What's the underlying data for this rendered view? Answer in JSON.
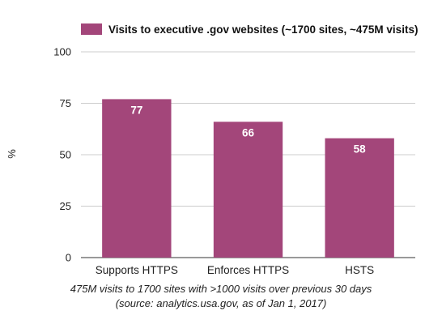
{
  "chart_data": {
    "type": "bar",
    "categories": [
      "Supports HTTPS",
      "Enforces HTTPS",
      "HSTS"
    ],
    "series": [
      {
        "name": "Visits to executive .gov websites (~1700 sites, ~475M visits)",
        "values": [
          77,
          66,
          58
        ]
      }
    ],
    "data_labels": [
      "77",
      "66",
      "58"
    ],
    "ylabel": "%",
    "xlabel": "",
    "ylim": [
      0,
      100
    ],
    "yticks": [
      0,
      25,
      50,
      75,
      100
    ],
    "grid": true,
    "legend_position": "top",
    "bar_color": "#a3467a",
    "caption_line1": "475M visits to 1700 sites with >1000 visits over previous 30 days",
    "caption_line2": "(source: analytics.usa.gov, as of Jan 1, 2017)"
  }
}
